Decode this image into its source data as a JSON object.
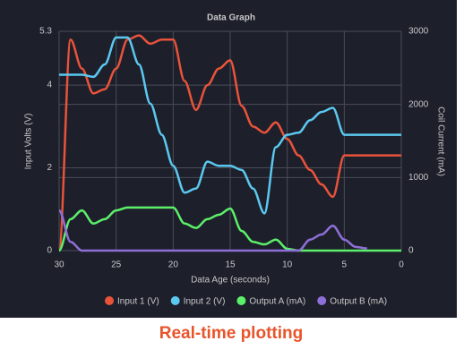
{
  "chart_data": {
    "type": "line",
    "title": "Data Graph",
    "x_label": "Data Age (seconds)",
    "y_label": "Input Volts (V)",
    "y2_label": "Coil Current (mA)",
    "x": [
      30,
      29,
      28,
      27,
      26,
      25,
      24,
      23,
      22,
      21,
      20,
      19,
      18,
      17,
      16,
      15,
      14,
      13,
      12,
      11,
      10,
      9,
      8,
      7,
      6,
      5,
      4,
      3,
      2,
      1,
      0
    ],
    "xlim": [
      30,
      0
    ],
    "xticks": [
      30,
      25,
      20,
      15,
      10,
      5,
      0
    ],
    "ylim": [
      0,
      5.3
    ],
    "yticks": [
      0,
      2,
      4,
      5.3
    ],
    "y2lim": [
      0,
      3000
    ],
    "y2ticks": [
      0,
      1000,
      2000,
      3000
    ],
    "grid": true,
    "legend": "bottom",
    "series": [
      {
        "name": "Input 1 (V)",
        "color": "#e8533a",
        "values": [
          0,
          5.1,
          4.4,
          3.8,
          3.9,
          4.4,
          5.1,
          5.2,
          5.0,
          5.1,
          5.1,
          4.1,
          3.4,
          4.0,
          4.4,
          4.6,
          3.5,
          3.0,
          2.85,
          3.1,
          2.7,
          2.3,
          1.95,
          1.6,
          1.3,
          2.3,
          2.3,
          2.3,
          2.3,
          2.3,
          2.3
        ]
      },
      {
        "name": "Input 2 (V)",
        "color": "#5bc8f0",
        "values": [
          4.25,
          4.25,
          4.25,
          4.2,
          4.5,
          5.15,
          5.15,
          4.5,
          3.55,
          2.8,
          2.05,
          1.4,
          1.5,
          2.15,
          2.05,
          2.05,
          1.95,
          1.5,
          0.9,
          2.5,
          2.8,
          2.85,
          3.15,
          3.35,
          3.45,
          2.8,
          2.8,
          2.8,
          2.8,
          2.8,
          2.8
        ]
      },
      {
        "name": "Output A (mA)",
        "color": "#5cef6a",
        "axis": "y2",
        "values": [
          0,
          430,
          550,
          370,
          430,
          550,
          590,
          590,
          590,
          590,
          590,
          370,
          310,
          430,
          490,
          575,
          270,
          120,
          85,
          150,
          25,
          0,
          0,
          0,
          0,
          0,
          0,
          0,
          0,
          0,
          0
        ]
      },
      {
        "name": "Output B (mA)",
        "color": "#8e6fd8",
        "axis": "y2",
        "values": [
          550,
          120,
          0,
          0,
          0,
          0,
          0,
          0,
          0,
          0,
          0,
          0,
          0,
          0,
          0,
          0,
          0,
          0,
          0,
          0,
          0,
          0,
          150,
          220,
          340,
          150,
          50,
          30,
          null,
          null,
          null
        ]
      }
    ]
  },
  "caption": "Real-time plotting"
}
